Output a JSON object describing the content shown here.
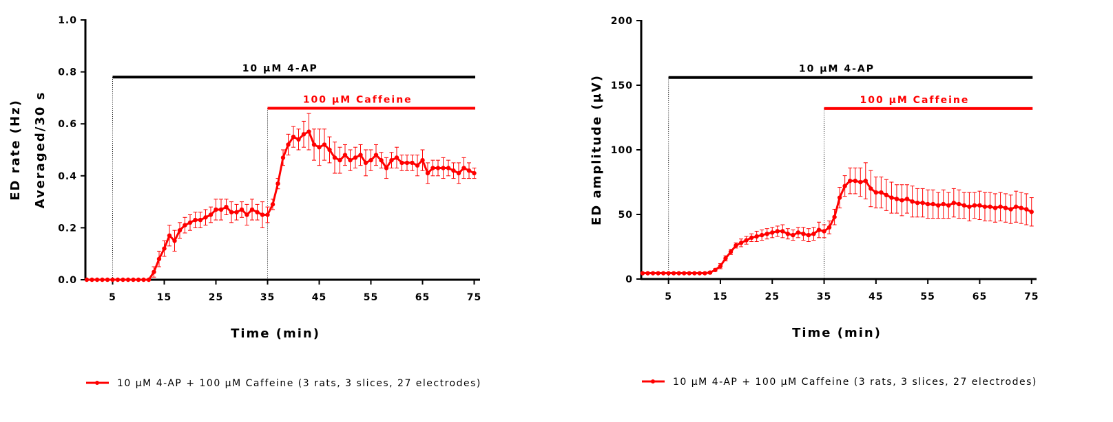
{
  "chart_data": [
    {
      "type": "line",
      "xlabel": "Time (min)",
      "ylabel": [
        "ED rate (Hz)",
        "Averaged/30 s"
      ],
      "xlim": [
        0,
        75
      ],
      "ylim": [
        0,
        1.0
      ],
      "xticks": [
        5,
        15,
        25,
        35,
        45,
        55,
        65,
        75
      ],
      "xtick_labels": [
        "5",
        "15",
        "25",
        "35",
        "45",
        "55",
        "65",
        "75"
      ],
      "yticks": [
        0,
        0.2,
        0.4,
        0.6,
        0.8,
        1.0
      ],
      "ytick_labels": [
        "0.0",
        "0.2",
        "0.4",
        "0.6",
        "0.8",
        "1.0"
      ],
      "grid": false,
      "color": "#ff0000",
      "annotations": [
        {
          "text": "10 µM 4-AP",
          "x_start": 5,
          "x_end": 76,
          "y": 0.78,
          "color": "#000000"
        },
        {
          "text": "100 µM Caffeine",
          "x_start": 35,
          "x_end": 76,
          "y": 0.66,
          "color": "#ff0000"
        }
      ],
      "legend": {
        "text": "10 µM 4-AP + 100 µM Caffeine (3 rats, 3 slices, 27 electrodes)",
        "placement": "bottom"
      },
      "series": [
        {
          "name": "10 µM 4-AP + 100 µM Caffeine (3 rats, 3 slices, 27 electrodes)",
          "x": [
            0,
            1,
            2,
            3,
            4,
            5,
            6,
            7,
            8,
            9,
            10,
            11,
            12,
            13,
            14,
            15,
            16,
            17,
            18,
            19,
            20,
            21,
            22,
            23,
            24,
            25,
            26,
            27,
            28,
            29,
            30,
            31,
            32,
            33,
            34,
            35,
            36,
            37,
            38,
            39,
            40,
            41,
            42,
            43,
            44,
            45,
            46,
            47,
            48,
            49,
            50,
            51,
            52,
            53,
            54,
            55,
            56,
            57,
            58,
            59,
            60,
            61,
            62,
            63,
            64,
            65,
            66,
            67,
            68,
            69,
            70,
            71,
            72,
            73,
            74,
            75
          ],
          "y": [
            0,
            0,
            0,
            0,
            0,
            0,
            0,
            0,
            0,
            0,
            0,
            0,
            0,
            0.03,
            0.08,
            0.12,
            0.17,
            0.15,
            0.19,
            0.21,
            0.22,
            0.23,
            0.23,
            0.24,
            0.25,
            0.27,
            0.27,
            0.28,
            0.26,
            0.26,
            0.27,
            0.25,
            0.27,
            0.26,
            0.25,
            0.25,
            0.29,
            0.37,
            0.47,
            0.52,
            0.55,
            0.54,
            0.56,
            0.57,
            0.52,
            0.51,
            0.52,
            0.5,
            0.47,
            0.46,
            0.48,
            0.46,
            0.47,
            0.48,
            0.45,
            0.46,
            0.48,
            0.46,
            0.43,
            0.46,
            0.47,
            0.45,
            0.45,
            0.45,
            0.44,
            0.46,
            0.41,
            0.43,
            0.43,
            0.43,
            0.43,
            0.42,
            0.41,
            0.43,
            0.42,
            0.41
          ],
          "err": [
            0,
            0,
            0,
            0,
            0,
            0,
            0,
            0,
            0,
            0,
            0,
            0,
            0,
            0.02,
            0.03,
            0.03,
            0.04,
            0.04,
            0.03,
            0.03,
            0.03,
            0.03,
            0.03,
            0.03,
            0.03,
            0.04,
            0.04,
            0.03,
            0.04,
            0.03,
            0.03,
            0.04,
            0.04,
            0.03,
            0.05,
            0.03,
            0.02,
            0.02,
            0.03,
            0.04,
            0.04,
            0.04,
            0.05,
            0.07,
            0.06,
            0.07,
            0.06,
            0.05,
            0.06,
            0.05,
            0.04,
            0.04,
            0.04,
            0.04,
            0.05,
            0.04,
            0.04,
            0.03,
            0.04,
            0.03,
            0.04,
            0.03,
            0.03,
            0.03,
            0.04,
            0.04,
            0.04,
            0.03,
            0.03,
            0.04,
            0.03,
            0.03,
            0.04,
            0.04,
            0.03,
            0.02
          ]
        }
      ]
    },
    {
      "type": "line",
      "xlabel": "Time (min)",
      "ylabel": [
        "ED amplitude (µV)"
      ],
      "xlim": [
        0,
        75
      ],
      "ylim": [
        0,
        200
      ],
      "xticks": [
        5,
        15,
        25,
        35,
        45,
        55,
        65,
        75
      ],
      "xtick_labels": [
        "5",
        "15",
        "25",
        "35",
        "45",
        "55",
        "65",
        "75"
      ],
      "yticks": [
        0,
        50,
        100,
        150,
        200
      ],
      "ytick_labels": [
        "0",
        "50",
        "100",
        "150",
        "200"
      ],
      "grid": false,
      "color": "#ff0000",
      "annotations": [
        {
          "text": "10 µM 4-AP",
          "x_start": 5,
          "x_end": 76,
          "y": 156,
          "color": "#000000"
        },
        {
          "text": "100 µM Caffeine",
          "x_start": 35,
          "x_end": 76,
          "y": 132,
          "color": "#ff0000"
        }
      ],
      "legend": {
        "text": "10 µM 4-AP + 100 µM Caffeine (3 rats, 3 slices, 27 electrodes)",
        "placement": "bottom"
      },
      "series": [
        {
          "name": "10 µM 4-AP + 100 µM Caffeine (3 rats, 3 slices, 27 electrodes)",
          "x": [
            0,
            1,
            2,
            3,
            4,
            5,
            6,
            7,
            8,
            9,
            10,
            11,
            12,
            13,
            14,
            15,
            16,
            17,
            18,
            19,
            20,
            21,
            22,
            23,
            24,
            25,
            26,
            27,
            28,
            29,
            30,
            31,
            32,
            33,
            34,
            35,
            36,
            37,
            38,
            39,
            40,
            41,
            42,
            43,
            44,
            45,
            46,
            47,
            48,
            49,
            50,
            51,
            52,
            53,
            54,
            55,
            56,
            57,
            58,
            59,
            60,
            61,
            62,
            63,
            64,
            65,
            66,
            67,
            68,
            69,
            70,
            71,
            72,
            73,
            74,
            75
          ],
          "y": [
            4.5,
            4.5,
            4.5,
            4.5,
            4.5,
            4.5,
            4.5,
            4.5,
            4.5,
            4.5,
            4.5,
            4.5,
            4.5,
            5,
            7,
            10,
            16,
            21,
            26,
            28,
            30,
            32,
            33,
            34,
            35,
            36,
            37,
            37,
            35,
            34,
            36,
            35,
            34,
            35,
            38,
            37,
            40,
            48,
            63,
            72,
            76,
            76,
            75,
            76,
            70,
            67,
            67,
            65,
            63,
            62,
            61,
            62,
            60,
            59,
            59,
            58,
            58,
            57,
            58,
            57,
            59,
            58,
            57,
            56,
            57,
            57,
            56,
            56,
            55,
            56,
            55,
            54,
            56,
            55,
            54,
            52
          ],
          "err": [
            0.5,
            0.5,
            0.5,
            0.5,
            0.5,
            0.5,
            0.5,
            0.5,
            0.5,
            0.5,
            0.5,
            0.5,
            0.5,
            1,
            1,
            2,
            2,
            2,
            2,
            3,
            3,
            3,
            4,
            4,
            4,
            4,
            4,
            5,
            4,
            4,
            4,
            5,
            5,
            5,
            6,
            5,
            5,
            6,
            8,
            8,
            10,
            10,
            11,
            14,
            14,
            12,
            12,
            12,
            12,
            11,
            12,
            11,
            12,
            11,
            11,
            11,
            11,
            10,
            11,
            10,
            11,
            11,
            10,
            11,
            10,
            11,
            11,
            11,
            11,
            11,
            11,
            11,
            12,
            12,
            12,
            11
          ]
        }
      ]
    }
  ]
}
